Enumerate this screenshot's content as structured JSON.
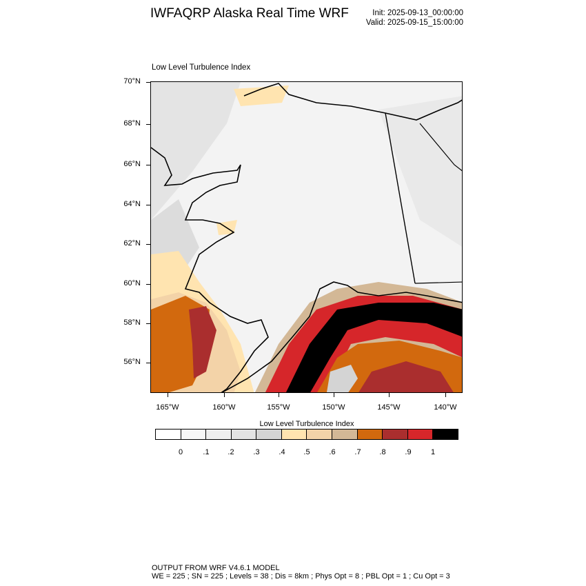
{
  "header": {
    "title": "IWFAQRP Alaska Real Time WRF",
    "init": "Init: 2025-09-13_00:00:00",
    "valid": "Valid: 2025-09-15_15:00:00"
  },
  "map": {
    "subtitle": "Low Level Turbulence Index",
    "lat_labels": [
      "70°N",
      "68°N",
      "66°N",
      "64°N",
      "62°N",
      "60°N",
      "58°N",
      "56°N"
    ],
    "lon_labels": [
      "165°W",
      "160°W",
      "155°W",
      "150°W",
      "145°W",
      "140°W"
    ],
    "colors": {
      "coast": "#000000",
      "background": "#f3f3f3"
    }
  },
  "colorbar": {
    "title": "Low Level Turbulence Index",
    "labels": [
      "0",
      ".1",
      ".2",
      ".3",
      ".4",
      ".5",
      ".6",
      ".7",
      ".8",
      ".9",
      "1"
    ],
    "colors": [
      "#ffffff",
      "#f7f7f7",
      "#efefef",
      "#e3e3e3",
      "#d4d4d4",
      "#ffe4b0",
      "#f3d3a8",
      "#d3b896",
      "#d2690e",
      "#aa2e2e",
      "#d6262a",
      "#000000"
    ]
  },
  "footer": {
    "line1": "OUTPUT FROM WRF V4.6.1 MODEL",
    "line2": "WE = 225 ; SN = 225 ; Levels = 38 ; Dis = 8km ; Phys Opt = 8 ; PBL Opt = 1 ; Cu Opt = 3"
  }
}
